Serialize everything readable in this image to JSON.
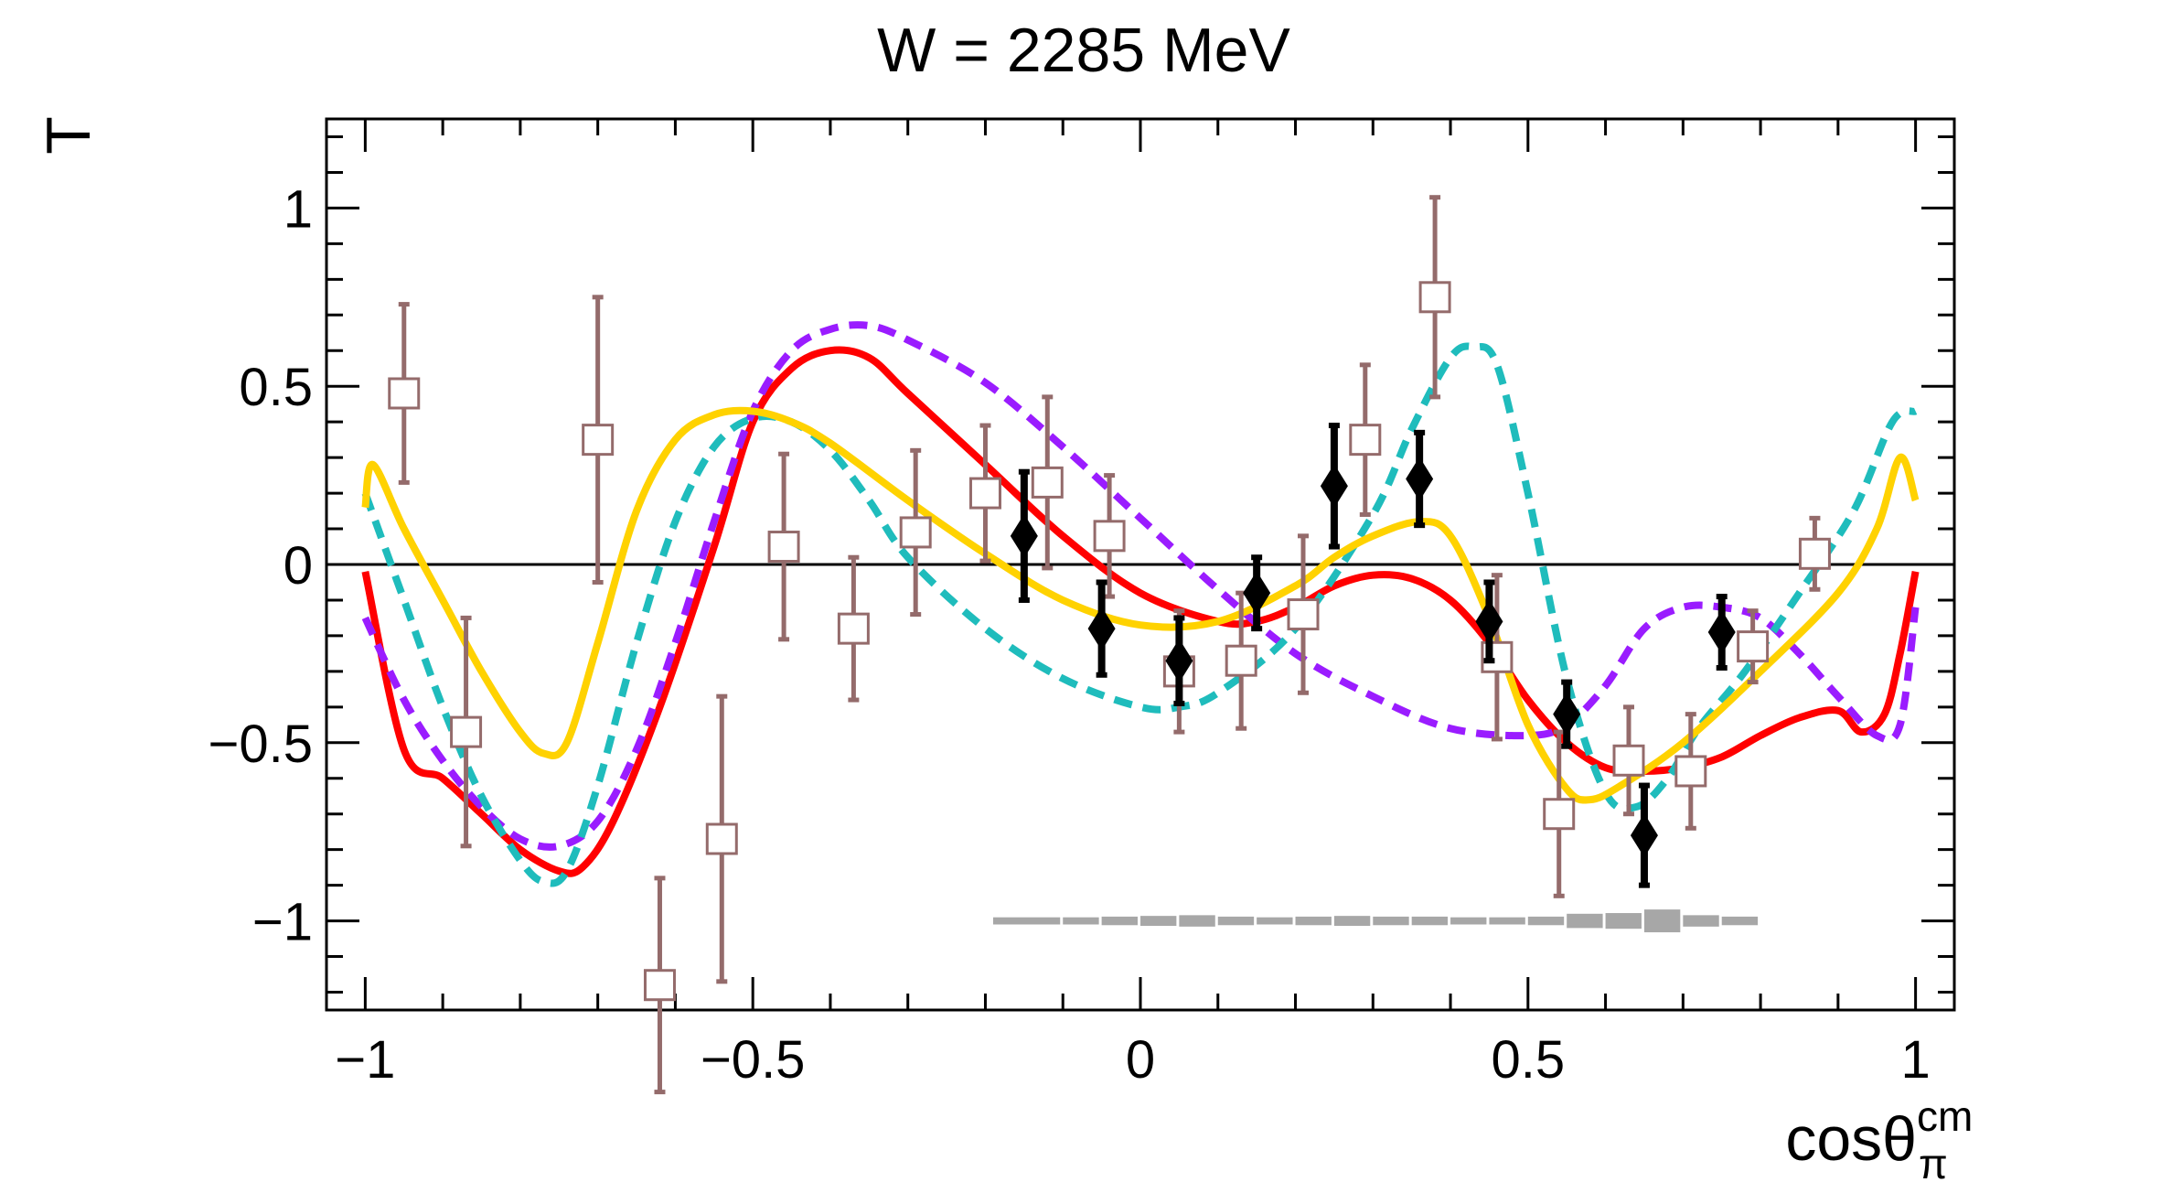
{
  "chart_data": {
    "type": "scatter",
    "title": "W = 2285 MeV",
    "xlabel": "cosθ",
    "xlabel_sub": "π",
    "xlabel_sup": "cm",
    "ylabel": "T",
    "xlim": [
      -1.05,
      1.05
    ],
    "ylim": [
      -1.25,
      1.25
    ],
    "x_ticks": [
      -1,
      -0.5,
      0,
      0.5,
      1
    ],
    "x_tick_labels": [
      "−1",
      "−0.5",
      "0",
      "0.5",
      "1"
    ],
    "y_ticks": [
      -1,
      -0.5,
      0,
      0.5,
      1
    ],
    "y_tick_labels": [
      "−1",
      "−0.5",
      "0",
      "0.5",
      "1"
    ],
    "zero_line": true,
    "series": [
      {
        "name": "open squares",
        "kind": "points",
        "marker": "open-square",
        "color": "#946b6b",
        "points": [
          {
            "x": -0.95,
            "y": 0.48,
            "err": 0.25
          },
          {
            "x": -0.87,
            "y": -0.47,
            "err": 0.32
          },
          {
            "x": -0.7,
            "y": 0.35,
            "err": 0.4
          },
          {
            "x": -0.62,
            "y": -1.18,
            "err": 0.3
          },
          {
            "x": -0.54,
            "y": -0.77,
            "err": 0.4
          },
          {
            "x": -0.46,
            "y": 0.05,
            "err": 0.26
          },
          {
            "x": -0.37,
            "y": -0.18,
            "err": 0.2
          },
          {
            "x": -0.29,
            "y": 0.09,
            "err": 0.23
          },
          {
            "x": -0.2,
            "y": 0.2,
            "err": 0.19
          },
          {
            "x": -0.12,
            "y": 0.23,
            "err": 0.24
          },
          {
            "x": -0.04,
            "y": 0.08,
            "err": 0.17
          },
          {
            "x": 0.05,
            "y": -0.3,
            "err": 0.17
          },
          {
            "x": 0.13,
            "y": -0.27,
            "err": 0.19
          },
          {
            "x": 0.21,
            "y": -0.14,
            "err": 0.22
          },
          {
            "x": 0.29,
            "y": 0.35,
            "err": 0.21
          },
          {
            "x": 0.38,
            "y": 0.75,
            "err": 0.28
          },
          {
            "x": 0.46,
            "y": -0.26,
            "err": 0.23
          },
          {
            "x": 0.54,
            "y": -0.7,
            "err": 0.23
          },
          {
            "x": 0.63,
            "y": -0.55,
            "err": 0.15
          },
          {
            "x": 0.71,
            "y": -0.58,
            "err": 0.16
          },
          {
            "x": 0.79,
            "y": -0.23,
            "err": 0.1
          },
          {
            "x": 0.87,
            "y": 0.03,
            "err": 0.1
          }
        ]
      },
      {
        "name": "filled diamonds",
        "kind": "points",
        "marker": "diamond",
        "color": "#000000",
        "points": [
          {
            "x": -0.15,
            "y": 0.08,
            "err": 0.18
          },
          {
            "x": -0.05,
            "y": -0.18,
            "err": 0.13
          },
          {
            "x": 0.05,
            "y": -0.27,
            "err": 0.12
          },
          {
            "x": 0.15,
            "y": -0.08,
            "err": 0.1
          },
          {
            "x": 0.25,
            "y": 0.22,
            "err": 0.17
          },
          {
            "x": 0.36,
            "y": 0.24,
            "err": 0.13
          },
          {
            "x": 0.45,
            "y": -0.16,
            "err": 0.11
          },
          {
            "x": 0.55,
            "y": -0.42,
            "err": 0.09
          },
          {
            "x": 0.65,
            "y": -0.76,
            "err": 0.14
          },
          {
            "x": 0.75,
            "y": -0.19,
            "err": 0.1
          }
        ]
      },
      {
        "name": "red solid curve",
        "kind": "line",
        "style": "solid",
        "color": "#ff0000",
        "x": [
          -1.0,
          -0.95,
          -0.9,
          -0.85,
          -0.8,
          -0.75,
          -0.72,
          -0.68,
          -0.62,
          -0.55,
          -0.5,
          -0.45,
          -0.4,
          -0.35,
          -0.3,
          -0.2,
          -0.1,
          0.0,
          0.1,
          0.15,
          0.2,
          0.25,
          0.3,
          0.35,
          0.4,
          0.45,
          0.5,
          0.55,
          0.6,
          0.65,
          0.7,
          0.75,
          0.8,
          0.85,
          0.9,
          0.93,
          0.96,
          0.98,
          1.0
        ],
        "y": [
          -0.02,
          -0.52,
          -0.6,
          -0.7,
          -0.8,
          -0.86,
          -0.85,
          -0.72,
          -0.4,
          0.05,
          0.4,
          0.55,
          0.6,
          0.58,
          0.48,
          0.28,
          0.08,
          -0.08,
          -0.16,
          -0.16,
          -0.12,
          -0.06,
          -0.03,
          -0.04,
          -0.1,
          -0.22,
          -0.38,
          -0.5,
          -0.57,
          -0.58,
          -0.57,
          -0.54,
          -0.48,
          -0.43,
          -0.41,
          -0.47,
          -0.42,
          -0.25,
          -0.02
        ]
      },
      {
        "name": "purple dashed curve",
        "kind": "line",
        "style": "dashed",
        "color": "#9a1cff",
        "x": [
          -1.0,
          -0.95,
          -0.9,
          -0.85,
          -0.8,
          -0.75,
          -0.7,
          -0.65,
          -0.6,
          -0.55,
          -0.5,
          -0.45,
          -0.4,
          -0.35,
          -0.3,
          -0.2,
          -0.1,
          0.0,
          0.1,
          0.2,
          0.3,
          0.4,
          0.5,
          0.55,
          0.6,
          0.65,
          0.7,
          0.75,
          0.8,
          0.85,
          0.9,
          0.95,
          0.98,
          1.0
        ],
        "y": [
          -0.15,
          -0.38,
          -0.55,
          -0.68,
          -0.77,
          -0.79,
          -0.72,
          -0.52,
          -0.22,
          0.12,
          0.43,
          0.6,
          0.66,
          0.67,
          0.63,
          0.51,
          0.33,
          0.13,
          -0.07,
          -0.25,
          -0.37,
          -0.46,
          -0.48,
          -0.45,
          -0.34,
          -0.18,
          -0.12,
          -0.12,
          -0.15,
          -0.25,
          -0.37,
          -0.48,
          -0.45,
          -0.12
        ]
      },
      {
        "name": "cyan dashed curve",
        "kind": "line",
        "style": "dashed",
        "color": "#1fbcbc",
        "x": [
          -1.0,
          -0.95,
          -0.9,
          -0.85,
          -0.8,
          -0.77,
          -0.74,
          -0.7,
          -0.65,
          -0.6,
          -0.55,
          -0.5,
          -0.45,
          -0.4,
          -0.35,
          -0.3,
          -0.2,
          -0.1,
          0.0,
          0.05,
          0.1,
          0.2,
          0.3,
          0.35,
          0.4,
          0.43,
          0.46,
          0.5,
          0.55,
          0.6,
          0.64,
          0.68,
          0.72,
          0.78,
          0.85,
          0.92,
          0.97,
          1.0
        ],
        "y": [
          0.2,
          -0.1,
          -0.4,
          -0.65,
          -0.83,
          -0.89,
          -0.86,
          -0.62,
          -0.22,
          0.12,
          0.33,
          0.41,
          0.4,
          0.32,
          0.18,
          0.02,
          -0.18,
          -0.32,
          -0.4,
          -0.4,
          -0.36,
          -0.18,
          0.14,
          0.38,
          0.58,
          0.61,
          0.56,
          0.2,
          -0.32,
          -0.64,
          -0.68,
          -0.6,
          -0.46,
          -0.3,
          -0.08,
          0.15,
          0.4,
          0.43
        ]
      },
      {
        "name": "yellow solid curve",
        "kind": "line",
        "style": "solid",
        "color": "#ffd200",
        "x": [
          -1.0,
          -0.99,
          -0.95,
          -0.9,
          -0.85,
          -0.8,
          -0.77,
          -0.74,
          -0.7,
          -0.65,
          -0.6,
          -0.55,
          -0.5,
          -0.45,
          -0.4,
          -0.3,
          -0.2,
          -0.1,
          0.0,
          0.1,
          0.2,
          0.25,
          0.3,
          0.36,
          0.4,
          0.45,
          0.5,
          0.55,
          0.58,
          0.62,
          0.7,
          0.8,
          0.9,
          0.95,
          0.98,
          1.0
        ],
        "y": [
          0.16,
          0.28,
          0.1,
          -0.1,
          -0.3,
          -0.47,
          -0.53,
          -0.5,
          -0.22,
          0.15,
          0.35,
          0.42,
          0.43,
          0.4,
          0.34,
          0.18,
          0.03,
          -0.1,
          -0.17,
          -0.16,
          -0.06,
          0.02,
          0.08,
          0.12,
          0.08,
          -0.15,
          -0.45,
          -0.63,
          -0.66,
          -0.62,
          -0.5,
          -0.3,
          -0.08,
          0.1,
          0.3,
          0.18
        ]
      },
      {
        "name": "systematic bands",
        "kind": "band",
        "color": "#8a8a8a",
        "y_center": -1.0,
        "x": [
          -0.19,
          -0.1,
          -0.05,
          0.0,
          0.05,
          0.1,
          0.15,
          0.2,
          0.25,
          0.3,
          0.35,
          0.4,
          0.45,
          0.5,
          0.55,
          0.6,
          0.65,
          0.7,
          0.75,
          0.8
        ],
        "half_height": [
          0.01,
          0.01,
          0.012,
          0.014,
          0.016,
          0.012,
          0.01,
          0.012,
          0.014,
          0.012,
          0.012,
          0.01,
          0.01,
          0.012,
          0.02,
          0.022,
          0.032,
          0.016,
          0.012,
          0.01
        ]
      }
    ]
  }
}
